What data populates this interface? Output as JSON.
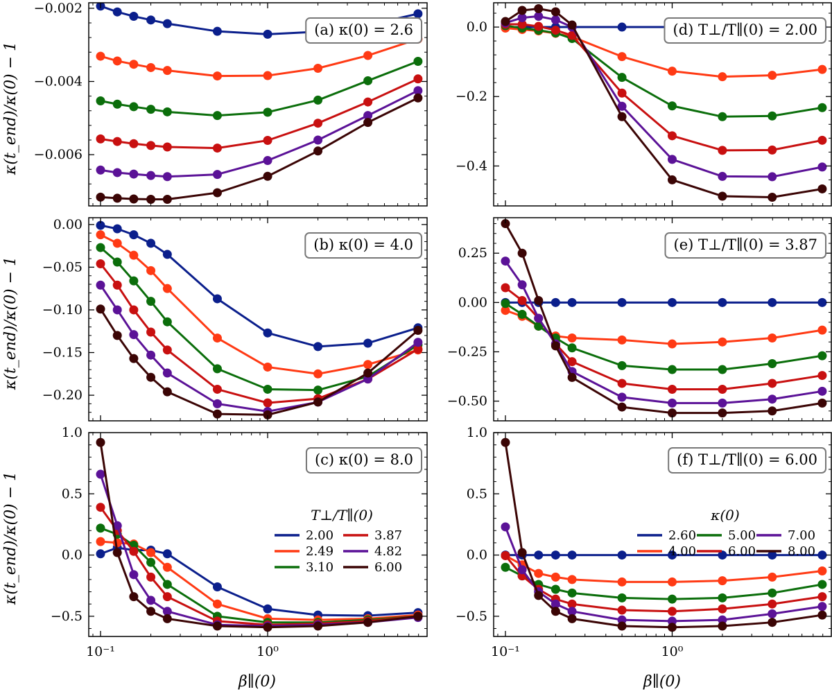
{
  "figure": {
    "xlabel": "β∥(0)",
    "ylabel": "κ(t_end)/κ(0) − 1",
    "x_ticks": [
      0.1,
      1
    ],
    "x_tick_labels": [
      "10⁻¹",
      "10⁰"
    ]
  },
  "series_colors": [
    "#0b1f8c",
    "#ff3a14",
    "#0b6e0b",
    "#c81010",
    "#5b1297",
    "#3b0505"
  ],
  "chart_data": [
    {
      "id": "a",
      "type": "line",
      "label": "(a) κ(0) = 2.6",
      "xscale": "log",
      "xlim": [
        0.085,
        9.0
      ],
      "ylim": [
        -0.0074,
        -0.00185
      ],
      "yticks": [
        -0.006,
        -0.004,
        -0.002
      ],
      "ytick_labels": [
        "−0.006",
        "−0.004",
        "−0.002"
      ],
      "x": [
        0.1,
        0.126,
        0.158,
        0.2,
        0.251,
        0.5,
        1.0,
        2.0,
        3.98,
        7.94
      ],
      "series": [
        {
          "name": "2.00",
          "values": [
            -0.00194,
            -0.0021,
            -0.00222,
            -0.00232,
            -0.00242,
            -0.00263,
            -0.00271,
            -0.00264,
            -0.00246,
            -0.00215
          ]
        },
        {
          "name": "2.49",
          "values": [
            -0.00331,
            -0.00344,
            -0.00353,
            -0.00362,
            -0.0037,
            -0.00385,
            -0.00384,
            -0.00364,
            -0.00329,
            -0.00284
          ]
        },
        {
          "name": "3.10",
          "values": [
            -0.00453,
            -0.00462,
            -0.00469,
            -0.00476,
            -0.00483,
            -0.00493,
            -0.00484,
            -0.00451,
            -0.00398,
            -0.00345
          ]
        },
        {
          "name": "3.87",
          "values": [
            -0.00557,
            -0.00564,
            -0.0057,
            -0.00575,
            -0.00579,
            -0.00582,
            -0.00561,
            -0.00514,
            -0.00456,
            -0.00393
          ]
        },
        {
          "name": "4.82",
          "values": [
            -0.00642,
            -0.00649,
            -0.00653,
            -0.00657,
            -0.0066,
            -0.00654,
            -0.00616,
            -0.0056,
            -0.00493,
            -0.00425
          ]
        },
        {
          "name": "6.00",
          "values": [
            -0.00716,
            -0.00719,
            -0.00721,
            -0.00722,
            -0.00722,
            -0.00704,
            -0.00659,
            -0.0059,
            -0.00512,
            -0.00445
          ]
        }
      ]
    },
    {
      "id": "b",
      "type": "line",
      "label": "(b) κ(0) = 4.0",
      "xscale": "log",
      "xlim": [
        0.085,
        9.0
      ],
      "ylim": [
        -0.23,
        0.008
      ],
      "yticks": [
        -0.2,
        -0.15,
        -0.1,
        -0.05,
        0.0
      ],
      "ytick_labels": [
        "−0.20",
        "−0.15",
        "−0.10",
        "−0.05",
        "0.00"
      ],
      "x": [
        0.1,
        0.126,
        0.158,
        0.2,
        0.251,
        0.5,
        1.0,
        2.0,
        3.98,
        7.94
      ],
      "series": [
        {
          "name": "2.00",
          "values": [
            -0.001,
            -0.005,
            -0.012,
            -0.022,
            -0.035,
            -0.087,
            -0.127,
            -0.143,
            -0.139,
            -0.121
          ]
        },
        {
          "name": "2.49",
          "values": [
            -0.012,
            -0.022,
            -0.036,
            -0.054,
            -0.075,
            -0.133,
            -0.167,
            -0.175,
            -0.164,
            -0.147
          ]
        },
        {
          "name": "3.10",
          "values": [
            -0.027,
            -0.044,
            -0.066,
            -0.09,
            -0.114,
            -0.169,
            -0.193,
            -0.194,
            -0.178,
            -0.141
          ]
        },
        {
          "name": "3.87",
          "values": [
            -0.046,
            -0.071,
            -0.1,
            -0.126,
            -0.147,
            -0.193,
            -0.209,
            -0.204,
            -0.181,
            -0.146
          ]
        },
        {
          "name": "4.82",
          "values": [
            -0.071,
            -0.1,
            -0.129,
            -0.153,
            -0.174,
            -0.21,
            -0.219,
            -0.208,
            -0.181,
            -0.138
          ]
        },
        {
          "name": "6.00",
          "values": [
            -0.099,
            -0.13,
            -0.157,
            -0.179,
            -0.196,
            -0.222,
            -0.223,
            -0.208,
            -0.174,
            -0.124
          ]
        }
      ]
    },
    {
      "id": "c",
      "type": "line",
      "label": "(c) κ(0) = 8.0",
      "xscale": "log",
      "xlim": [
        0.085,
        9.0
      ],
      "ylim": [
        -0.665,
        1.0
      ],
      "yticks": [
        -0.5,
        0.0,
        0.5,
        1.0
      ],
      "ytick_labels": [
        "−0.5",
        "0.0",
        "0.5",
        "1.0"
      ],
      "x": [
        0.1,
        0.126,
        0.158,
        0.2,
        0.251,
        0.5,
        1.0,
        2.0,
        3.98,
        7.94
      ],
      "legend": {
        "title": "T⊥/T∥(0)",
        "position": "center-right",
        "ncol": 2
      },
      "series": [
        {
          "name": "2.00",
          "values": [
            0.01,
            0.06,
            0.04,
            0.04,
            0.01,
            -0.26,
            -0.44,
            -0.49,
            -0.495,
            -0.47
          ]
        },
        {
          "name": "2.49",
          "values": [
            0.11,
            0.1,
            0.09,
            0.02,
            -0.1,
            -0.4,
            -0.52,
            -0.53,
            -0.52,
            -0.49
          ]
        },
        {
          "name": "3.10",
          "values": [
            0.22,
            0.17,
            0.08,
            -0.06,
            -0.24,
            -0.5,
            -0.55,
            -0.55,
            -0.53,
            -0.5
          ]
        },
        {
          "name": "3.87",
          "values": [
            0.39,
            0.2,
            0.03,
            -0.18,
            -0.34,
            -0.54,
            -0.57,
            -0.56,
            -0.54,
            -0.5
          ]
        },
        {
          "name": "4.82",
          "values": [
            0.66,
            0.24,
            -0.16,
            -0.37,
            -0.46,
            -0.57,
            -0.58,
            -0.57,
            -0.55,
            -0.51
          ]
        },
        {
          "name": "6.00",
          "values": [
            0.92,
            0.02,
            -0.34,
            -0.46,
            -0.52,
            -0.58,
            -0.59,
            -0.58,
            -0.55,
            -0.5
          ]
        }
      ]
    },
    {
      "id": "d",
      "type": "line",
      "label": "(d) T⊥/T∥(0) = 2.00",
      "xscale": "log",
      "xlim": [
        0.085,
        9.0
      ],
      "ylim": [
        -0.515,
        0.07
      ],
      "yticks": [
        -0.4,
        -0.2,
        0.0
      ],
      "ytick_labels": [
        "−0.4",
        "−0.2",
        "0.0"
      ],
      "x": [
        0.1,
        0.126,
        0.158,
        0.2,
        0.251,
        0.5,
        1.0,
        2.0,
        3.98,
        7.94
      ],
      "series": [
        {
          "name": "2.60",
          "values": [
            0.0,
            0.0,
            0.0,
            0.0,
            0.0,
            0.0,
            0.0,
            0.0,
            0.0,
            0.0
          ]
        },
        {
          "name": "4.00",
          "values": [
            -0.003,
            -0.007,
            -0.011,
            -0.018,
            -0.028,
            -0.085,
            -0.127,
            -0.143,
            -0.139,
            -0.122
          ]
        },
        {
          "name": "5.00",
          "values": [
            0.004,
            -0.003,
            -0.009,
            -0.017,
            -0.033,
            -0.145,
            -0.227,
            -0.258,
            -0.256,
            -0.232
          ]
        },
        {
          "name": "6.00",
          "values": [
            0.008,
            0.008,
            0.002,
            -0.009,
            -0.024,
            -0.19,
            -0.313,
            -0.355,
            -0.354,
            -0.326
          ]
        },
        {
          "name": "7.00",
          "values": [
            0.012,
            0.027,
            0.031,
            0.021,
            0.0,
            -0.228,
            -0.381,
            -0.43,
            -0.431,
            -0.403
          ]
        },
        {
          "name": "8.00",
          "values": [
            0.016,
            0.048,
            0.053,
            0.044,
            0.006,
            -0.258,
            -0.44,
            -0.487,
            -0.49,
            -0.466
          ]
        }
      ]
    },
    {
      "id": "e",
      "type": "line",
      "label": "(e) T⊥/T∥(0) = 3.87",
      "xscale": "log",
      "xlim": [
        0.085,
        9.0
      ],
      "ylim": [
        -0.6,
        0.43
      ],
      "yticks": [
        -0.5,
        -0.25,
        0.0,
        0.25
      ],
      "ytick_labels": [
        "−0.50",
        "−0.25",
        "0.00",
        "0.25"
      ],
      "x": [
        0.1,
        0.126,
        0.158,
        0.2,
        0.251,
        0.5,
        1.0,
        2.0,
        3.98,
        7.94
      ],
      "series": [
        {
          "name": "2.60",
          "values": [
            0.0,
            0.0,
            0.0,
            0.0,
            0.0,
            0.0,
            0.0,
            0.0,
            0.0,
            0.0
          ]
        },
        {
          "name": "4.00",
          "values": [
            -0.04,
            -0.07,
            -0.12,
            -0.17,
            -0.18,
            -0.19,
            -0.21,
            -0.2,
            -0.18,
            -0.14
          ]
        },
        {
          "name": "5.00",
          "values": [
            -0.005,
            -0.06,
            -0.12,
            -0.18,
            -0.23,
            -0.32,
            -0.34,
            -0.34,
            -0.31,
            -0.27
          ]
        },
        {
          "name": "6.00",
          "values": [
            0.075,
            0.01,
            -0.08,
            -0.21,
            -0.3,
            -0.41,
            -0.44,
            -0.44,
            -0.41,
            -0.37
          ]
        },
        {
          "name": "7.00",
          "values": [
            0.21,
            0.09,
            -0.08,
            -0.21,
            -0.35,
            -0.48,
            -0.51,
            -0.51,
            -0.49,
            -0.45
          ]
        },
        {
          "name": "8.00",
          "values": [
            0.4,
            0.25,
            0.01,
            -0.22,
            -0.38,
            -0.53,
            -0.56,
            -0.56,
            -0.55,
            -0.51
          ]
        }
      ]
    },
    {
      "id": "f",
      "type": "line",
      "label": "(f) T⊥/T∥(0) = 6.00",
      "xscale": "log",
      "xlim": [
        0.085,
        9.0
      ],
      "ylim": [
        -0.665,
        1.0
      ],
      "yticks": [
        -0.5,
        0.0,
        0.5,
        1.0
      ],
      "ytick_labels": [
        "−0.5",
        "0.0",
        "0.5",
        "1.0"
      ],
      "x": [
        0.1,
        0.126,
        0.158,
        0.2,
        0.251,
        0.5,
        1.0,
        2.0,
        3.98,
        7.94
      ],
      "legend": {
        "title": "κ(0)",
        "position": "center-right",
        "ncol": 3
      },
      "series": [
        {
          "name": "2.60",
          "values": [
            0.0,
            0.0,
            0.0,
            0.0,
            0.0,
            0.0,
            0.0,
            0.0,
            0.0,
            0.0
          ]
        },
        {
          "name": "4.00",
          "values": [
            -0.005,
            -0.08,
            -0.15,
            -0.18,
            -0.2,
            -0.22,
            -0.22,
            -0.21,
            -0.18,
            -0.13
          ]
        },
        {
          "name": "5.00",
          "values": [
            -0.1,
            -0.17,
            -0.24,
            -0.28,
            -0.31,
            -0.35,
            -0.36,
            -0.35,
            -0.31,
            -0.24
          ]
        },
        {
          "name": "6.00",
          "values": [
            -0.005,
            -0.17,
            -0.28,
            -0.36,
            -0.4,
            -0.45,
            -0.46,
            -0.44,
            -0.4,
            -0.34
          ]
        },
        {
          "name": "7.00",
          "values": [
            0.23,
            -0.12,
            -0.3,
            -0.4,
            -0.46,
            -0.53,
            -0.54,
            -0.53,
            -0.48,
            -0.42
          ]
        },
        {
          "name": "8.00",
          "values": [
            0.92,
            0.02,
            -0.33,
            -0.46,
            -0.52,
            -0.58,
            -0.59,
            -0.58,
            -0.55,
            -0.49
          ]
        }
      ]
    }
  ]
}
